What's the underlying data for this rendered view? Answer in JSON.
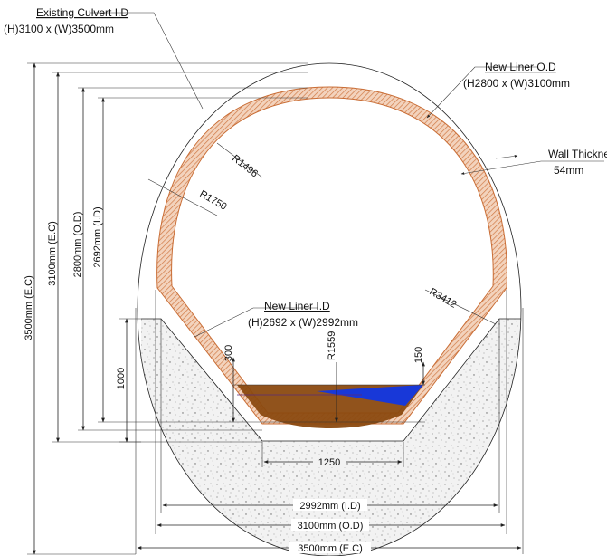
{
  "labels": {
    "existing_culvert_title": "Existing Culvert I.D",
    "existing_culvert_size": "(H)3100 x (W)3500mm",
    "new_liner_od_title": "New Liner O.D",
    "new_liner_od_size": "(H2800 x (W)3100mm",
    "wall_thickness_title": "Wall Thickness",
    "wall_thickness_value": "54mm",
    "new_liner_id_title": "New Liner I.D",
    "new_liner_id_size": "(H)2692 x (W)2992mm"
  },
  "radii": {
    "r1496": "R1496",
    "r1750": "R1750",
    "r3412": "R3412",
    "r1559": "R1559"
  },
  "dimensions": {
    "ec_height": "3500mm (E.C)",
    "c_height": "3100mm (E.C)",
    "od_height": "2800mm (O.D)",
    "id_height": "2692mm (I.D)",
    "h1000": "1000",
    "h300": "300",
    "h150": "150",
    "w1250": "1250",
    "w2992": "2992mm (I.D)",
    "w3100": "3100mm (O.D)",
    "w3500": "3500mm (E.C)"
  },
  "colors": {
    "liner": "#d98a55",
    "concrete_fill": "#efefef",
    "water_brown": "#8b4a10",
    "water_blue": "#1838d8"
  }
}
